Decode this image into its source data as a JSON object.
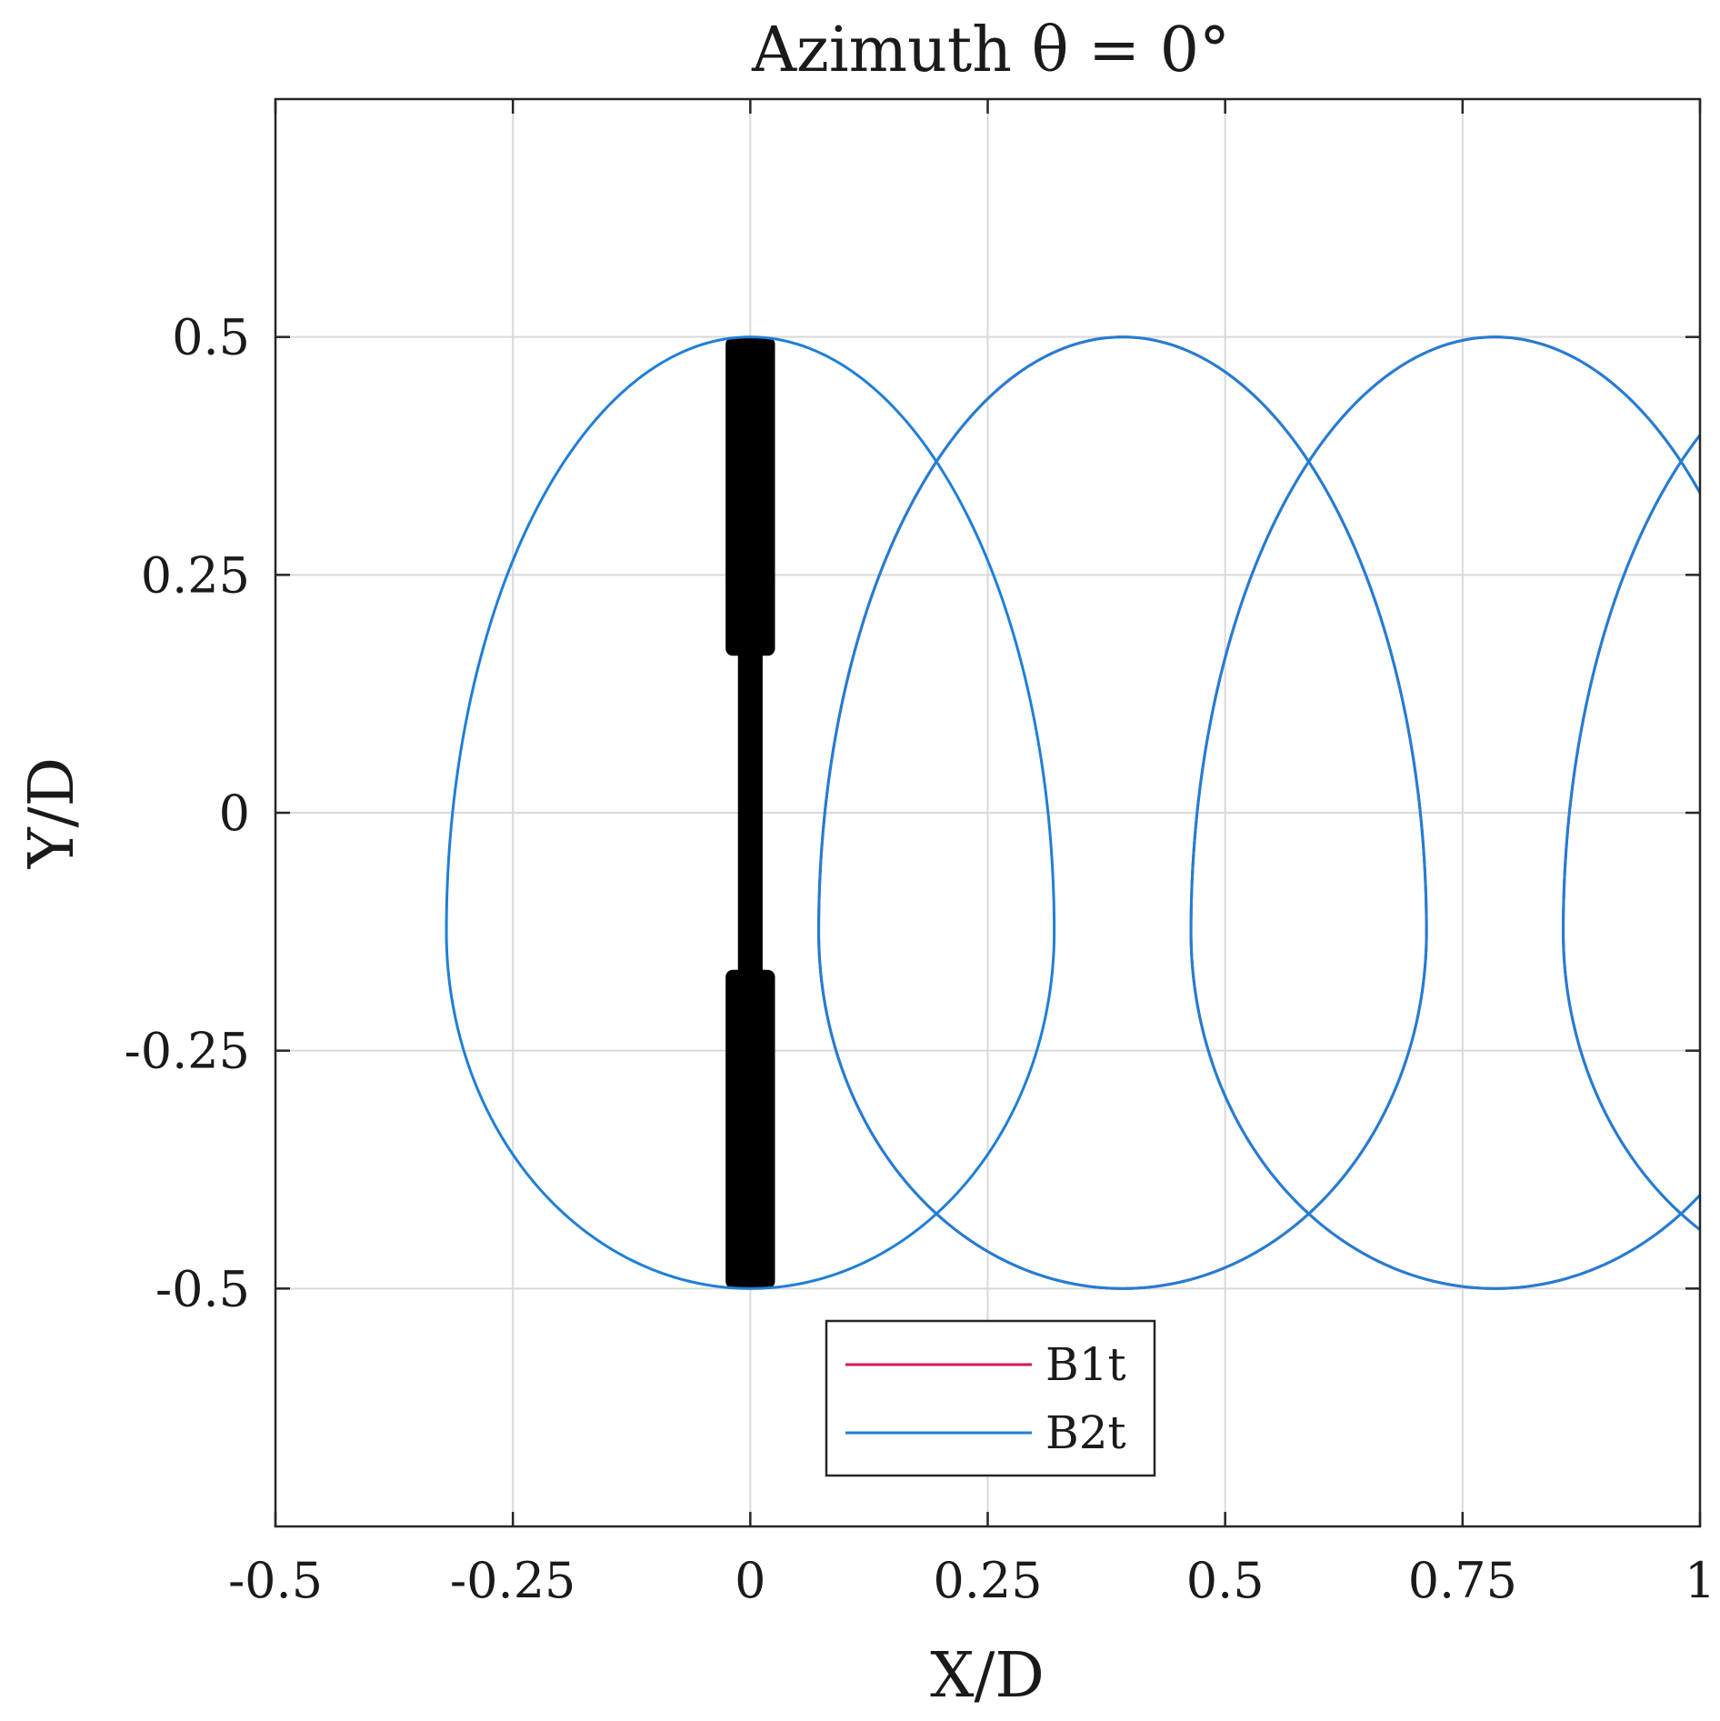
{
  "chart_data": {
    "type": "line",
    "title": "Azimuth θ = 0°",
    "xlabel": "X/D",
    "ylabel": "Y/D",
    "xlim": [
      -0.5,
      1
    ],
    "ylim": [
      -0.75,
      0.75
    ],
    "xticks": [
      -0.5,
      -0.25,
      0,
      0.25,
      0.5,
      0.75,
      1
    ],
    "xtick_labels": [
      "-0.5",
      "-0.25",
      "0",
      "0.25",
      "0.5",
      "0.75",
      "1"
    ],
    "yticks": [
      -0.5,
      -0.25,
      0,
      0.25,
      0.5
    ],
    "ytick_labels": [
      "-0.5",
      "-0.25",
      "0",
      "0.25",
      "0.5"
    ],
    "grid": true,
    "legend_position": "bottom-center",
    "series": [
      {
        "name": "B1t",
        "color": "#d6185a",
        "loops": [
          {
            "center_x": 0.392,
            "center_y": -0.125,
            "rx": 0.32,
            "ry_upper": 0.625,
            "ry_lower": 0.375
          },
          {
            "center_x": 0.784,
            "center_y": -0.125,
            "rx": 0.32,
            "ry_upper": 0.625,
            "ry_lower": 0.375
          },
          {
            "center_x": 1.176,
            "center_y": -0.125,
            "rx": 0.32,
            "ry_upper": 0.625,
            "ry_lower": 0.375
          }
        ]
      },
      {
        "name": "B2t",
        "color": "#1f7fd6",
        "loops": [
          {
            "center_x": 0.0,
            "center_y": -0.125,
            "rx": 0.32,
            "ry_upper": 0.625,
            "ry_lower": 0.375
          },
          {
            "center_x": 0.392,
            "center_y": -0.125,
            "rx": 0.32,
            "ry_upper": 0.625,
            "ry_lower": 0.375
          },
          {
            "center_x": 0.784,
            "center_y": -0.125,
            "rx": 0.32,
            "ry_upper": 0.625,
            "ry_lower": 0.375
          },
          {
            "center_x": 1.176,
            "center_y": -0.125,
            "rx": 0.32,
            "ry_upper": 0.625,
            "ry_lower": 0.375
          }
        ]
      }
    ],
    "rotor": {
      "color": "#000000",
      "x": 0,
      "y_range": [
        -0.5,
        0.5
      ],
      "blade_y_ranges": [
        [
          0.165,
          0.5
        ],
        [
          -0.5,
          -0.165
        ]
      ],
      "blade_half_width_x": 0.026,
      "hub_half_width_x": 0.013
    }
  }
}
